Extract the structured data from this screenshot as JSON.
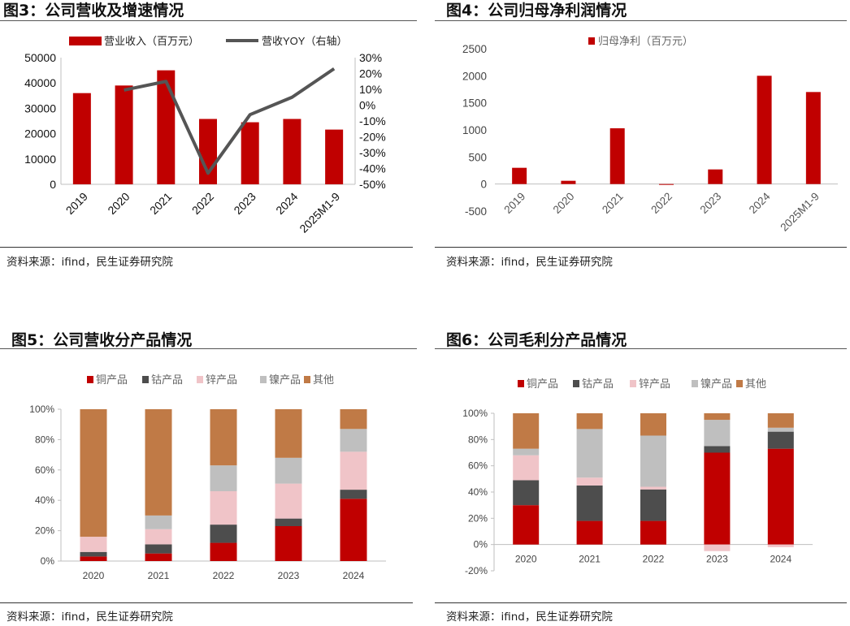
{
  "colors": {
    "red": "#c00000",
    "darkgray": "#4d4d4d",
    "pink": "#f0c4c8",
    "lightgray": "#bfbfbf",
    "brown": "#c07a46",
    "line": "#555555",
    "axis": "#bfbfbf"
  },
  "panels": [
    {
      "title": "图3：公司营收及增速情况",
      "source": "资料来源：ifind，民生证券研究院",
      "chart_data": {
        "type": "bar-line",
        "categories": [
          "2019",
          "2020",
          "2021",
          "2022",
          "2023",
          "2024",
          "2025M1-9"
        ],
        "series": [
          {
            "name": "营业收入（百万元）",
            "type": "bar",
            "axis": "left",
            "values": [
              36000,
              39000,
              45000,
              25800,
              24500,
              25800,
              21600
            ]
          },
          {
            "name": "营收YOY（右轴）",
            "type": "line",
            "axis": "right",
            "values": [
              null,
              9.5,
              15,
              -43,
              -6,
              5,
              23
            ]
          }
        ],
        "yleft": {
          "min": 0,
          "max": 50000,
          "ticks": [
            0,
            10000,
            20000,
            30000,
            40000,
            50000
          ],
          "tick_labels": [
            "0",
            "10000",
            "20000",
            "30000",
            "40000",
            "50000"
          ]
        },
        "yright": {
          "min": -50,
          "max": 30,
          "ticks": [
            -50,
            -40,
            -30,
            -20,
            -10,
            0,
            10,
            20,
            30
          ],
          "tick_labels": [
            "-50%",
            "-40%",
            "-30%",
            "-20%",
            "-10%",
            "0%",
            "10%",
            "20%",
            "30%"
          ]
        },
        "legend": "top"
      }
    },
    {
      "title": "图4：公司归母净利润情况",
      "source": "资料来源：ifind，民生证券研究院",
      "chart_data": {
        "type": "bar",
        "categories": [
          "2019",
          "2020",
          "2021",
          "2022",
          "2023",
          "2024",
          "2025M1-9"
        ],
        "series": [
          {
            "name": "归母净利（百万元）",
            "values": [
              300,
              60,
              1030,
              -10,
              270,
              2000,
              1700
            ]
          }
        ],
        "ylim": [
          -500,
          2500
        ],
        "ticks": [
          -500,
          0,
          500,
          1000,
          1500,
          2000,
          2500
        ],
        "tick_labels": [
          "-500",
          "0",
          "500",
          "1000",
          "1500",
          "2000",
          "2500"
        ],
        "legend": "top"
      }
    },
    {
      "title": "图5：公司营收分产品情况",
      "source": "资料来源：ifind，民生证券研究院",
      "chart_data": {
        "type": "stacked-bar",
        "categories": [
          "2020",
          "2021",
          "2022",
          "2023",
          "2024"
        ],
        "series": [
          {
            "name": "铜产品",
            "values": [
              3,
              5,
              12,
              23,
              41
            ]
          },
          {
            "name": "钴产品",
            "values": [
              3,
              6,
              12,
              5,
              6
            ]
          },
          {
            "name": "锌产品",
            "values": [
              10,
              10,
              22,
              23,
              25
            ]
          },
          {
            "name": "镍产品",
            "values": [
              0,
              9,
              17,
              17,
              15
            ]
          },
          {
            "name": "其他",
            "values": [
              84,
              70,
              37,
              32,
              13
            ]
          }
        ],
        "ylim": [
          0,
          100
        ],
        "ticks": [
          0,
          20,
          40,
          60,
          80,
          100
        ],
        "tick_labels": [
          "0%",
          "20%",
          "40%",
          "60%",
          "80%",
          "100%"
        ],
        "legend": "top"
      }
    },
    {
      "title": "图6：公司毛利分产品情况",
      "source": "资料来源：ifind，民生证券研究院",
      "chart_data": {
        "type": "stacked-bar",
        "categories": [
          "2020",
          "2021",
          "2022",
          "2023",
          "2024"
        ],
        "series": [
          {
            "name": "铜产品",
            "values": [
              30,
              18,
              18,
              70,
              73
            ]
          },
          {
            "name": "钴产品",
            "values": [
              19,
              27,
              24,
              5,
              13
            ]
          },
          {
            "name": "锌产品",
            "values": [
              19,
              6,
              2,
              -5,
              -2
            ]
          },
          {
            "name": "镍产品",
            "values": [
              5,
              37,
              39,
              20,
              3
            ]
          },
          {
            "name": "其他",
            "values": [
              27,
              12,
              17,
              5,
              11
            ]
          }
        ],
        "ylim": [
          -20,
          100
        ],
        "ticks": [
          -20,
          0,
          20,
          40,
          60,
          80,
          100
        ],
        "tick_labels": [
          "-20%",
          "0%",
          "20%",
          "40%",
          "60%",
          "80%",
          "100%"
        ],
        "legend": "top"
      }
    }
  ]
}
